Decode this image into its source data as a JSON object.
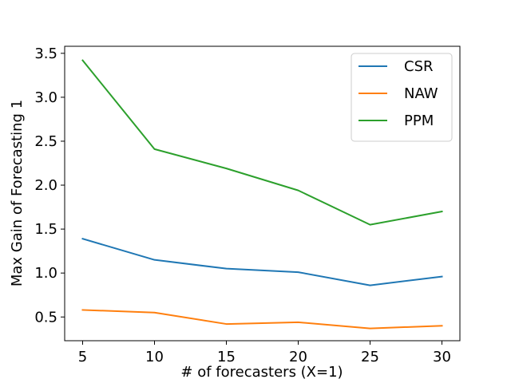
{
  "chart_data": {
    "type": "line",
    "title": "",
    "xlabel": "# of forecasters (X=1)",
    "ylabel": "Max Gain of Forecasting 1",
    "x": [
      5,
      10,
      15,
      20,
      25,
      30
    ],
    "xlim": [
      3.75,
      31.25
    ],
    "ylim": [
      0.23,
      3.58
    ],
    "xticks": [
      5,
      10,
      15,
      20,
      25,
      30
    ],
    "yticks": [
      0.5,
      1.0,
      1.5,
      2.0,
      2.5,
      3.0,
      3.5
    ],
    "ytick_labels": [
      "0.5",
      "1.0",
      "1.5",
      "2.0",
      "2.5",
      "3.0",
      "3.5"
    ],
    "grid": false,
    "legend_position": "top-right",
    "series": [
      {
        "name": "CSR",
        "color": "#1f77b4",
        "values": [
          1.39,
          1.15,
          1.05,
          1.01,
          0.86,
          0.96
        ]
      },
      {
        "name": "NAW",
        "color": "#ff7f0e",
        "values": [
          0.58,
          0.55,
          0.42,
          0.44,
          0.37,
          0.4
        ]
      },
      {
        "name": "PPM",
        "color": "#2ca02c",
        "values": [
          3.42,
          2.41,
          2.19,
          1.94,
          1.55,
          1.7
        ]
      }
    ]
  }
}
